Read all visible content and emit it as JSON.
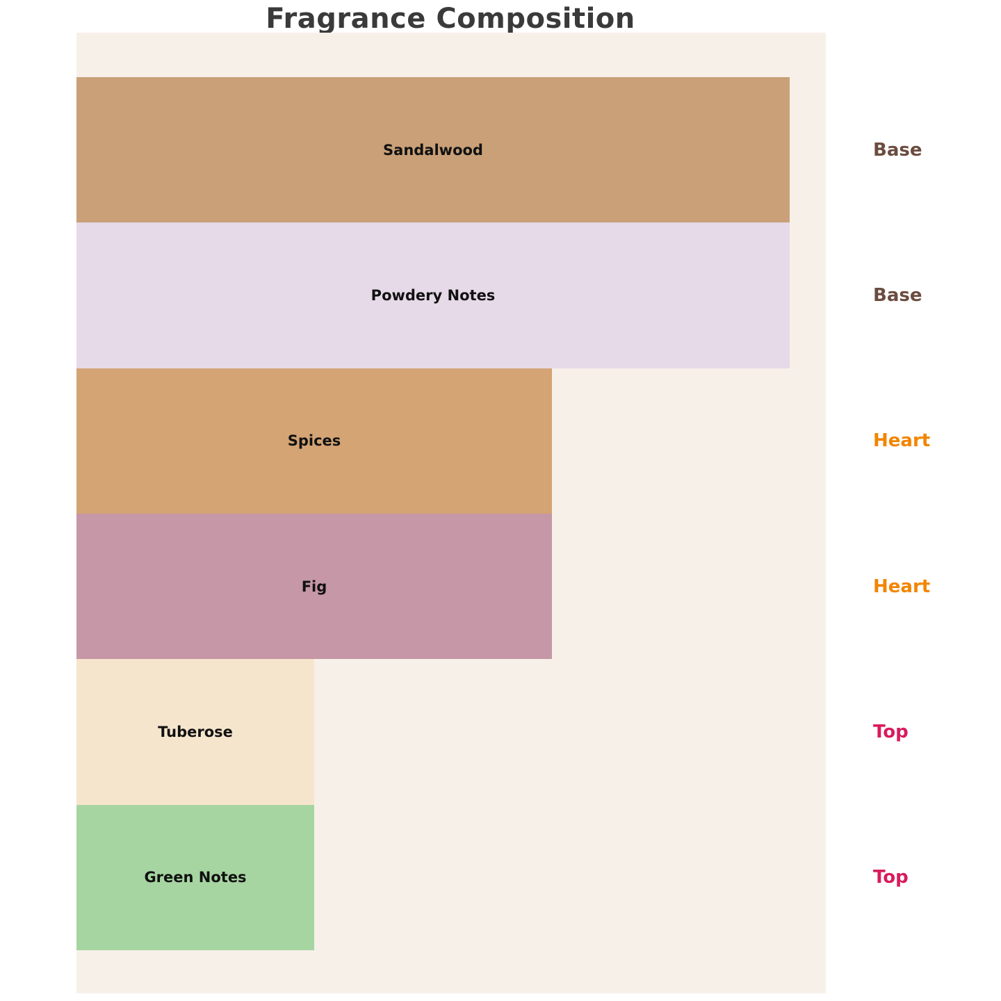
{
  "title": "Fragrance Composition",
  "colors": {
    "background": "#ffffff",
    "panel_background": "#f7f0e9",
    "title_text": "#3a3a3a",
    "bar_label_text": "#111111",
    "group_base": "#6b4c3f",
    "group_heart": "#f28500",
    "group_top": "#d81b5e"
  },
  "chart_data": {
    "type": "bar",
    "orientation": "horizontal",
    "title": "Fragrance Composition",
    "categories": [
      "Sandalwood",
      "Powdery Notes",
      "Spices",
      "Fig",
      "Tuberose",
      "Green Notes"
    ],
    "values": [
      30,
      30,
      20,
      20,
      10,
      10
    ],
    "value_note": "no numeric axis shown; values estimated from bar widths, ratio 3 : 3 : 2 : 2 : 1 : 1",
    "xlim": [
      0,
      31.5
    ],
    "grid": false,
    "legend": false,
    "axis_ticks": false,
    "notes": [
      {
        "label": "Sandalwood",
        "value": 30,
        "group": "Base",
        "color": "#c9a077"
      },
      {
        "label": "Powdery Notes",
        "value": 30,
        "group": "Base",
        "color": "#e6d9e8"
      },
      {
        "label": "Spices",
        "value": 20,
        "group": "Heart",
        "color": "#d4a474"
      },
      {
        "label": "Fig",
        "value": 20,
        "group": "Heart",
        "color": "#c697a6"
      },
      {
        "label": "Tuberose",
        "value": 10,
        "group": "Top",
        "color": "#f6e5cd"
      },
      {
        "label": "Green Notes",
        "value": 10,
        "group": "Top",
        "color": "#a6d5a1"
      }
    ],
    "group_colors": {
      "Base": "#6b4c3f",
      "Heart": "#f28500",
      "Top": "#d81b5e"
    },
    "group_label_position": "right"
  }
}
